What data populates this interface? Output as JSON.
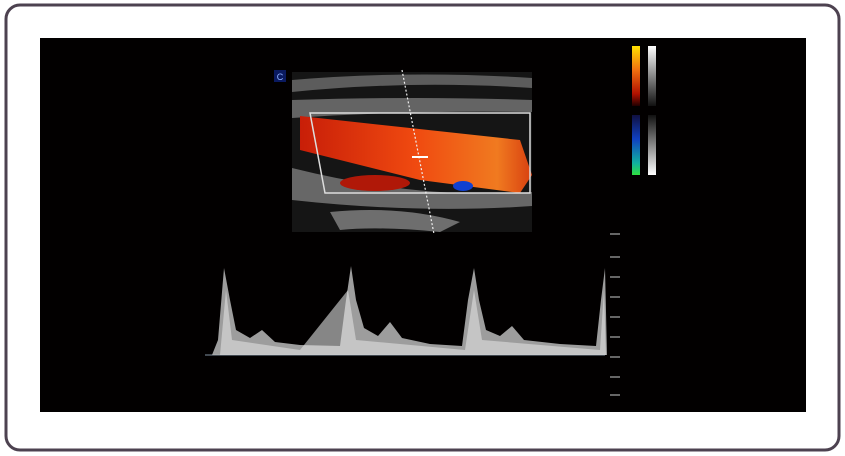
{
  "image": {
    "label": "C"
  }
}
